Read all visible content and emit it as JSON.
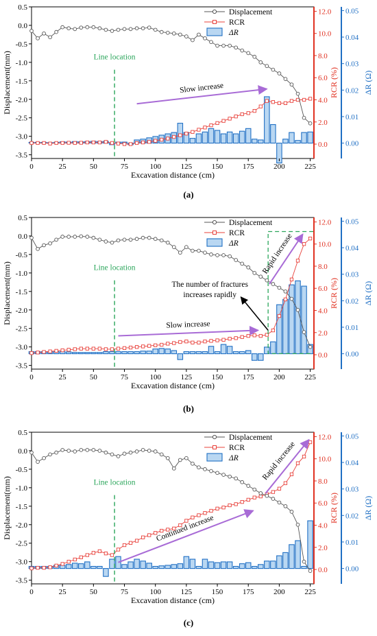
{
  "colors": {
    "displacement": "#555555",
    "rcr": "#e8403a",
    "dr_fill": "#b9d7f2",
    "dr_stroke": "#1f6fc4",
    "right_axis": "#1f6fc4",
    "rcr_axis": "#e03020",
    "line_location": "#2aa55a",
    "arrow": "#a86bd6",
    "black_arrow": "#000000"
  },
  "chart_data": [
    {
      "type": "combo",
      "panel_label": "(a)",
      "xlabel": "Excavation distance (cm)",
      "ylabel_left": "Displacement(mm)",
      "ylabel_rcr": "RCR (%)",
      "ylabel_dr": "ΔR (Ω)",
      "xlim": [
        0,
        228
      ],
      "xticks": [
        "0",
        "25",
        "50",
        "75",
        "100",
        "125",
        "150",
        "175",
        "200",
        "225"
      ],
      "ylim_left": [
        -3.6,
        0.5
      ],
      "yticks_left": [
        "0.5",
        "0.0",
        "-0.5",
        "-1.0",
        "-1.5",
        "-2.0",
        "-2.5",
        "-3.0",
        "-3.5"
      ],
      "ylim_rcr": [
        -1.3,
        12.4
      ],
      "yticks_rcr": [
        "0.0",
        "2.0",
        "4.0",
        "6.0",
        "8.0",
        "10.0",
        "12.0"
      ],
      "ylim_dr": [
        -0.0058,
        0.0514
      ],
      "yticks_dr": [
        "0.00",
        "0.01",
        "0.02",
        "0.03",
        "0.04",
        "0.05"
      ],
      "legend": [
        "Displacement",
        "RCR",
        "ΔR"
      ],
      "legend_position": "top-right",
      "line_location": {
        "label": "Line location",
        "x": 67
      },
      "x": [
        0,
        5,
        10,
        15,
        20,
        25,
        30,
        35,
        40,
        45,
        50,
        55,
        60,
        65,
        70,
        75,
        80,
        85,
        90,
        95,
        100,
        105,
        110,
        115,
        120,
        125,
        130,
        135,
        140,
        145,
        150,
        155,
        160,
        165,
        170,
        175,
        180,
        185,
        190,
        195,
        200,
        205,
        210,
        215,
        220,
        225
      ],
      "series": [
        {
          "name": "Displacement",
          "axis": "left",
          "values": [
            -0.15,
            -0.35,
            -0.22,
            -0.32,
            -0.18,
            -0.05,
            -0.08,
            -0.1,
            -0.06,
            -0.05,
            -0.05,
            -0.08,
            -0.12,
            -0.15,
            -0.12,
            -0.1,
            -0.1,
            -0.08,
            -0.08,
            -0.06,
            -0.12,
            -0.18,
            -0.2,
            -0.22,
            -0.25,
            -0.3,
            -0.4,
            -0.25,
            -0.35,
            -0.45,
            -0.55,
            -0.55,
            -0.55,
            -0.6,
            -0.68,
            -0.75,
            -0.85,
            -1.0,
            -1.1,
            -1.2,
            -1.3,
            -1.45,
            -1.6,
            -1.85,
            -2.5,
            -2.65
          ]
        },
        {
          "name": "RCR",
          "axis": "rcr",
          "values": [
            0.1,
            0.1,
            0.1,
            0.05,
            0.1,
            0.1,
            0.12,
            0.1,
            0.12,
            0.15,
            0.15,
            0.15,
            0.2,
            0.1,
            0.05,
            0.0,
            0.0,
            0.1,
            0.15,
            0.2,
            0.3,
            0.4,
            0.5,
            0.65,
            0.8,
            0.95,
            1.1,
            1.3,
            1.5,
            1.7,
            1.9,
            2.1,
            2.3,
            2.5,
            2.7,
            2.8,
            3.0,
            3.4,
            3.9,
            3.8,
            3.7,
            3.7,
            3.9,
            4.0,
            4.0,
            4.1
          ]
        },
        {
          "name": "ΔR",
          "axis": "dr",
          "values": [
            0.0003,
            0.0003,
            0.0003,
            0.0002,
            0.0003,
            0.0005,
            0.0004,
            0.0006,
            0.0005,
            0.0006,
            0.0007,
            0.0006,
            0.0007,
            -0.0006,
            0.0004,
            0.0004,
            -0.0006,
            0.0012,
            0.0015,
            0.002,
            0.0025,
            0.003,
            0.0035,
            0.004,
            0.0075,
            0.004,
            0.0018,
            0.0035,
            0.0042,
            0.0055,
            0.0048,
            0.0035,
            0.0042,
            0.0035,
            0.0045,
            0.0055,
            0.0015,
            0.0012,
            0.0175,
            0.007,
            -0.0075,
            0.0015,
            0.004,
            0.001,
            0.004,
            0.0042
          ]
        }
      ],
      "annotations": [
        {
          "text": "Slow increase",
          "from": [
            85,
            -2.12
          ],
          "to": [
            190,
            -1.72
          ]
        }
      ]
    },
    {
      "type": "combo",
      "panel_label": "(b)",
      "xlabel": "Excavation distance (cm)",
      "ylabel_left": "Displacement(mm)",
      "ylabel_rcr": "RCR (%)",
      "ylabel_dr": "ΔR (Ω)",
      "xlim": [
        0,
        228
      ],
      "xticks": [
        "0",
        "25",
        "50",
        "75",
        "100",
        "125",
        "150",
        "175",
        "200",
        "225"
      ],
      "ylim_left": [
        -3.6,
        0.5
      ],
      "yticks_left": [
        "0.5",
        "0.0",
        "-0.5",
        "-1.0",
        "-1.5",
        "-2.0",
        "-2.5",
        "-3.0",
        "-3.5"
      ],
      "ylim_rcr": [
        -1.3,
        12.4
      ],
      "yticks_rcr": [
        "0.0",
        "2.0",
        "4.0",
        "6.0",
        "8.0",
        "10.0",
        "12.0"
      ],
      "ylim_dr": [
        -0.0058,
        0.0514
      ],
      "yticks_dr": [
        "0.00",
        "0.01",
        "0.02",
        "0.03",
        "0.04",
        "0.05"
      ],
      "legend": [
        "Displacement",
        "RCR",
        "ΔR"
      ],
      "legend_position": "top-right",
      "line_location": {
        "label": "Line location",
        "x": 67
      },
      "x": [
        0,
        5,
        10,
        15,
        20,
        25,
        30,
        35,
        40,
        45,
        50,
        55,
        60,
        65,
        70,
        75,
        80,
        85,
        90,
        95,
        100,
        105,
        110,
        115,
        120,
        125,
        130,
        135,
        140,
        145,
        150,
        155,
        160,
        165,
        170,
        175,
        180,
        185,
        190,
        195,
        200,
        205,
        210,
        215,
        220,
        225
      ],
      "series": [
        {
          "name": "Displacement",
          "axis": "left",
          "values": [
            -0.05,
            -0.35,
            -0.25,
            -0.2,
            -0.1,
            -0.02,
            -0.02,
            -0.02,
            -0.01,
            -0.02,
            -0.05,
            -0.1,
            -0.15,
            -0.18,
            -0.12,
            -0.1,
            -0.1,
            -0.08,
            -0.05,
            -0.05,
            -0.08,
            -0.12,
            -0.18,
            -0.3,
            -0.45,
            -0.3,
            -0.4,
            -0.4,
            -0.45,
            -0.5,
            -0.52,
            -0.52,
            -0.55,
            -0.65,
            -0.75,
            -0.85,
            -1.0,
            -1.1,
            -1.2,
            -1.3,
            -1.4,
            -1.5,
            -1.7,
            -2.0,
            -2.6,
            -3.0
          ]
        },
        {
          "name": "RCR",
          "axis": "rcr",
          "values": [
            0.15,
            0.2,
            0.25,
            0.3,
            0.35,
            0.4,
            0.45,
            0.5,
            0.55,
            0.55,
            0.55,
            0.55,
            0.5,
            0.5,
            0.55,
            0.6,
            0.65,
            0.7,
            0.75,
            0.8,
            0.85,
            0.9,
            1.0,
            1.05,
            1.15,
            1.2,
            1.1,
            1.1,
            1.2,
            1.25,
            1.3,
            1.35,
            1.45,
            1.5,
            1.6,
            1.7,
            1.75,
            1.7,
            1.8,
            2.2,
            3.5,
            5.0,
            6.8,
            8.5,
            10.0,
            10.5
          ]
        },
        {
          "name": "ΔR",
          "axis": "dr",
          "values": [
            0.0008,
            0.0008,
            0.0008,
            0.0008,
            0.0008,
            0.0008,
            0.0007,
            0.0005,
            0.0005,
            0.0005,
            0.0005,
            0.0005,
            0.0008,
            0.0008,
            0.0008,
            0.0008,
            0.0008,
            0.0008,
            0.001,
            0.001,
            0.0018,
            0.002,
            0.0018,
            0.0012,
            -0.0022,
            0.0008,
            0.0008,
            0.0008,
            0.0008,
            0.0028,
            0.0008,
            0.0035,
            0.0028,
            0.0008,
            0.0008,
            0.0012,
            -0.0025,
            -0.0025,
            0.0025,
            0.0045,
            0.0185,
            0.0205,
            0.026,
            0.0275,
            0.0255,
            0.0035
          ]
        }
      ],
      "annotations": [
        {
          "text": "Slow increase",
          "from": [
            70,
            -2.7
          ],
          "to": [
            183,
            -2.55
          ]
        },
        {
          "text": "Rapid increase",
          "from": [
            192,
            -1.3
          ],
          "to": [
            219,
            0.05
          ]
        },
        {
          "text": "The number of fractures increases rapidly",
          "from": [
            191,
            -2.55
          ],
          "to": [
            169,
            -1.65
          ]
        }
      ],
      "highlight_box": {
        "x": [
          191,
          228
        ],
        "y": [
          -3.18,
          0.12
        ]
      }
    },
    {
      "type": "combo",
      "panel_label": "(c)",
      "xlabel": "Excavation distance (cm)",
      "ylabel_left": "Displacement(mm)",
      "ylabel_rcr": "RCR (%)",
      "ylabel_dr": "ΔR (Ω)",
      "xlim": [
        0,
        228
      ],
      "xticks": [
        "0",
        "25",
        "50",
        "75",
        "100",
        "125",
        "150",
        "175",
        "200",
        "225"
      ],
      "ylim_left": [
        -3.6,
        0.5
      ],
      "yticks_left": [
        "0.5",
        "0.0",
        "-0.5",
        "-1.0",
        "-1.5",
        "-2.0",
        "-2.5",
        "-3.0",
        "-3.5"
      ],
      "ylim_rcr": [
        -1.3,
        12.4
      ],
      "yticks_rcr": [
        "0.0",
        "2.0",
        "4.0",
        "6.0",
        "8.0",
        "10.0",
        "12.0"
      ],
      "ylim_dr": [
        -0.0058,
        0.0514
      ],
      "yticks_dr": [
        "0.00",
        "0.01",
        "0.02",
        "0.03",
        "0.04",
        "0.05"
      ],
      "legend": [
        "Displacement",
        "RCR",
        "ΔR"
      ],
      "legend_position": "top-right",
      "line_location": {
        "label": "Line location",
        "x": 67
      },
      "x": [
        0,
        5,
        10,
        15,
        20,
        25,
        30,
        35,
        40,
        45,
        50,
        55,
        60,
        65,
        70,
        75,
        80,
        85,
        90,
        95,
        100,
        105,
        110,
        115,
        120,
        125,
        130,
        135,
        140,
        145,
        150,
        155,
        160,
        165,
        170,
        175,
        180,
        185,
        190,
        195,
        200,
        205,
        210,
        215,
        220,
        225
      ],
      "series": [
        {
          "name": "Displacement",
          "axis": "left",
          "values": [
            -0.05,
            -0.3,
            -0.2,
            -0.1,
            -0.05,
            0.02,
            0.0,
            -0.02,
            0.02,
            0.02,
            0.02,
            0.0,
            -0.05,
            -0.1,
            -0.15,
            -0.08,
            -0.05,
            -0.02,
            0.02,
            0.0,
            -0.02,
            -0.1,
            -0.2,
            -0.48,
            -0.25,
            -0.2,
            -0.35,
            -0.45,
            -0.5,
            -0.55,
            -0.6,
            -0.65,
            -0.7,
            -0.75,
            -0.85,
            -0.95,
            -1.05,
            -1.15,
            -1.22,
            -1.3,
            -1.4,
            -1.5,
            -1.65,
            -2.0,
            -3.0,
            -3.25
          ]
        },
        {
          "name": "RCR",
          "axis": "rcr",
          "values": [
            0.1,
            0.15,
            0.15,
            0.2,
            0.35,
            0.5,
            0.7,
            0.9,
            1.1,
            1.3,
            1.5,
            1.65,
            1.45,
            1.3,
            1.8,
            2.2,
            2.4,
            2.6,
            2.9,
            3.1,
            3.3,
            3.5,
            3.6,
            3.7,
            4.0,
            4.4,
            4.7,
            4.9,
            5.1,
            5.3,
            5.5,
            5.6,
            5.8,
            5.9,
            6.1,
            6.3,
            6.5,
            6.6,
            6.8,
            7.0,
            7.3,
            7.8,
            8.6,
            9.6,
            10.2,
            11.5
          ]
        },
        {
          "name": "ΔR",
          "axis": "dr",
          "values": [
            0.0008,
            0.0008,
            0.0008,
            0.0008,
            0.0012,
            0.0012,
            0.0015,
            0.002,
            0.0018,
            0.0025,
            0.0008,
            0.0008,
            -0.003,
            0.0035,
            0.0045,
            0.0015,
            0.0025,
            0.0035,
            0.0028,
            0.002,
            0.0008,
            0.001,
            0.0012,
            0.0015,
            0.0018,
            0.0045,
            0.0035,
            0.0008,
            0.0035,
            0.0025,
            0.0022,
            0.0025,
            0.0025,
            0.0008,
            0.0018,
            0.0022,
            0.0008,
            0.0015,
            0.0028,
            0.0028,
            0.0048,
            0.006,
            0.009,
            0.0105,
            0.0008,
            0.018
          ]
        }
      ],
      "annotations": [
        {
          "text": "Continued increase",
          "from": [
            70,
            -3.02
          ],
          "to": [
            179,
            -1.62
          ]
        },
        {
          "text": "Rapid increase",
          "from": [
            189,
            -1.15
          ],
          "to": [
            224,
            0.3
          ]
        }
      ]
    }
  ]
}
